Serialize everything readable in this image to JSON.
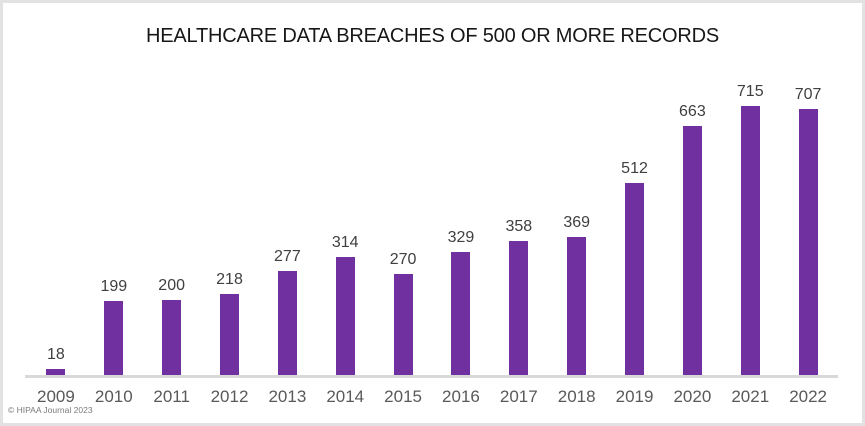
{
  "chart_data": {
    "type": "bar",
    "title": "HEALTHCARE DATA BREACHES OF 500 OR MORE RECORDS",
    "categories": [
      "2009",
      "2010",
      "2011",
      "2012",
      "2013",
      "2014",
      "2015",
      "2016",
      "2017",
      "2018",
      "2019",
      "2020",
      "2021",
      "2022"
    ],
    "values": [
      18,
      199,
      200,
      218,
      277,
      314,
      270,
      329,
      358,
      369,
      512,
      663,
      715,
      707
    ],
    "xlabel": "",
    "ylabel": "",
    "ylim": [
      0,
      715
    ],
    "grid": false,
    "legend": "none",
    "data_labels": true,
    "bar_color": "#7030A0"
  },
  "colors": {
    "bar": "#7030A0",
    "axis_line": "#D9D9D9",
    "value_label": "#3F3F3F",
    "tick_label": "#595959",
    "title": "#171717",
    "frame_border": "#E2E2E2"
  },
  "footer": {
    "credit": "© HIPAA Journal 2023"
  }
}
